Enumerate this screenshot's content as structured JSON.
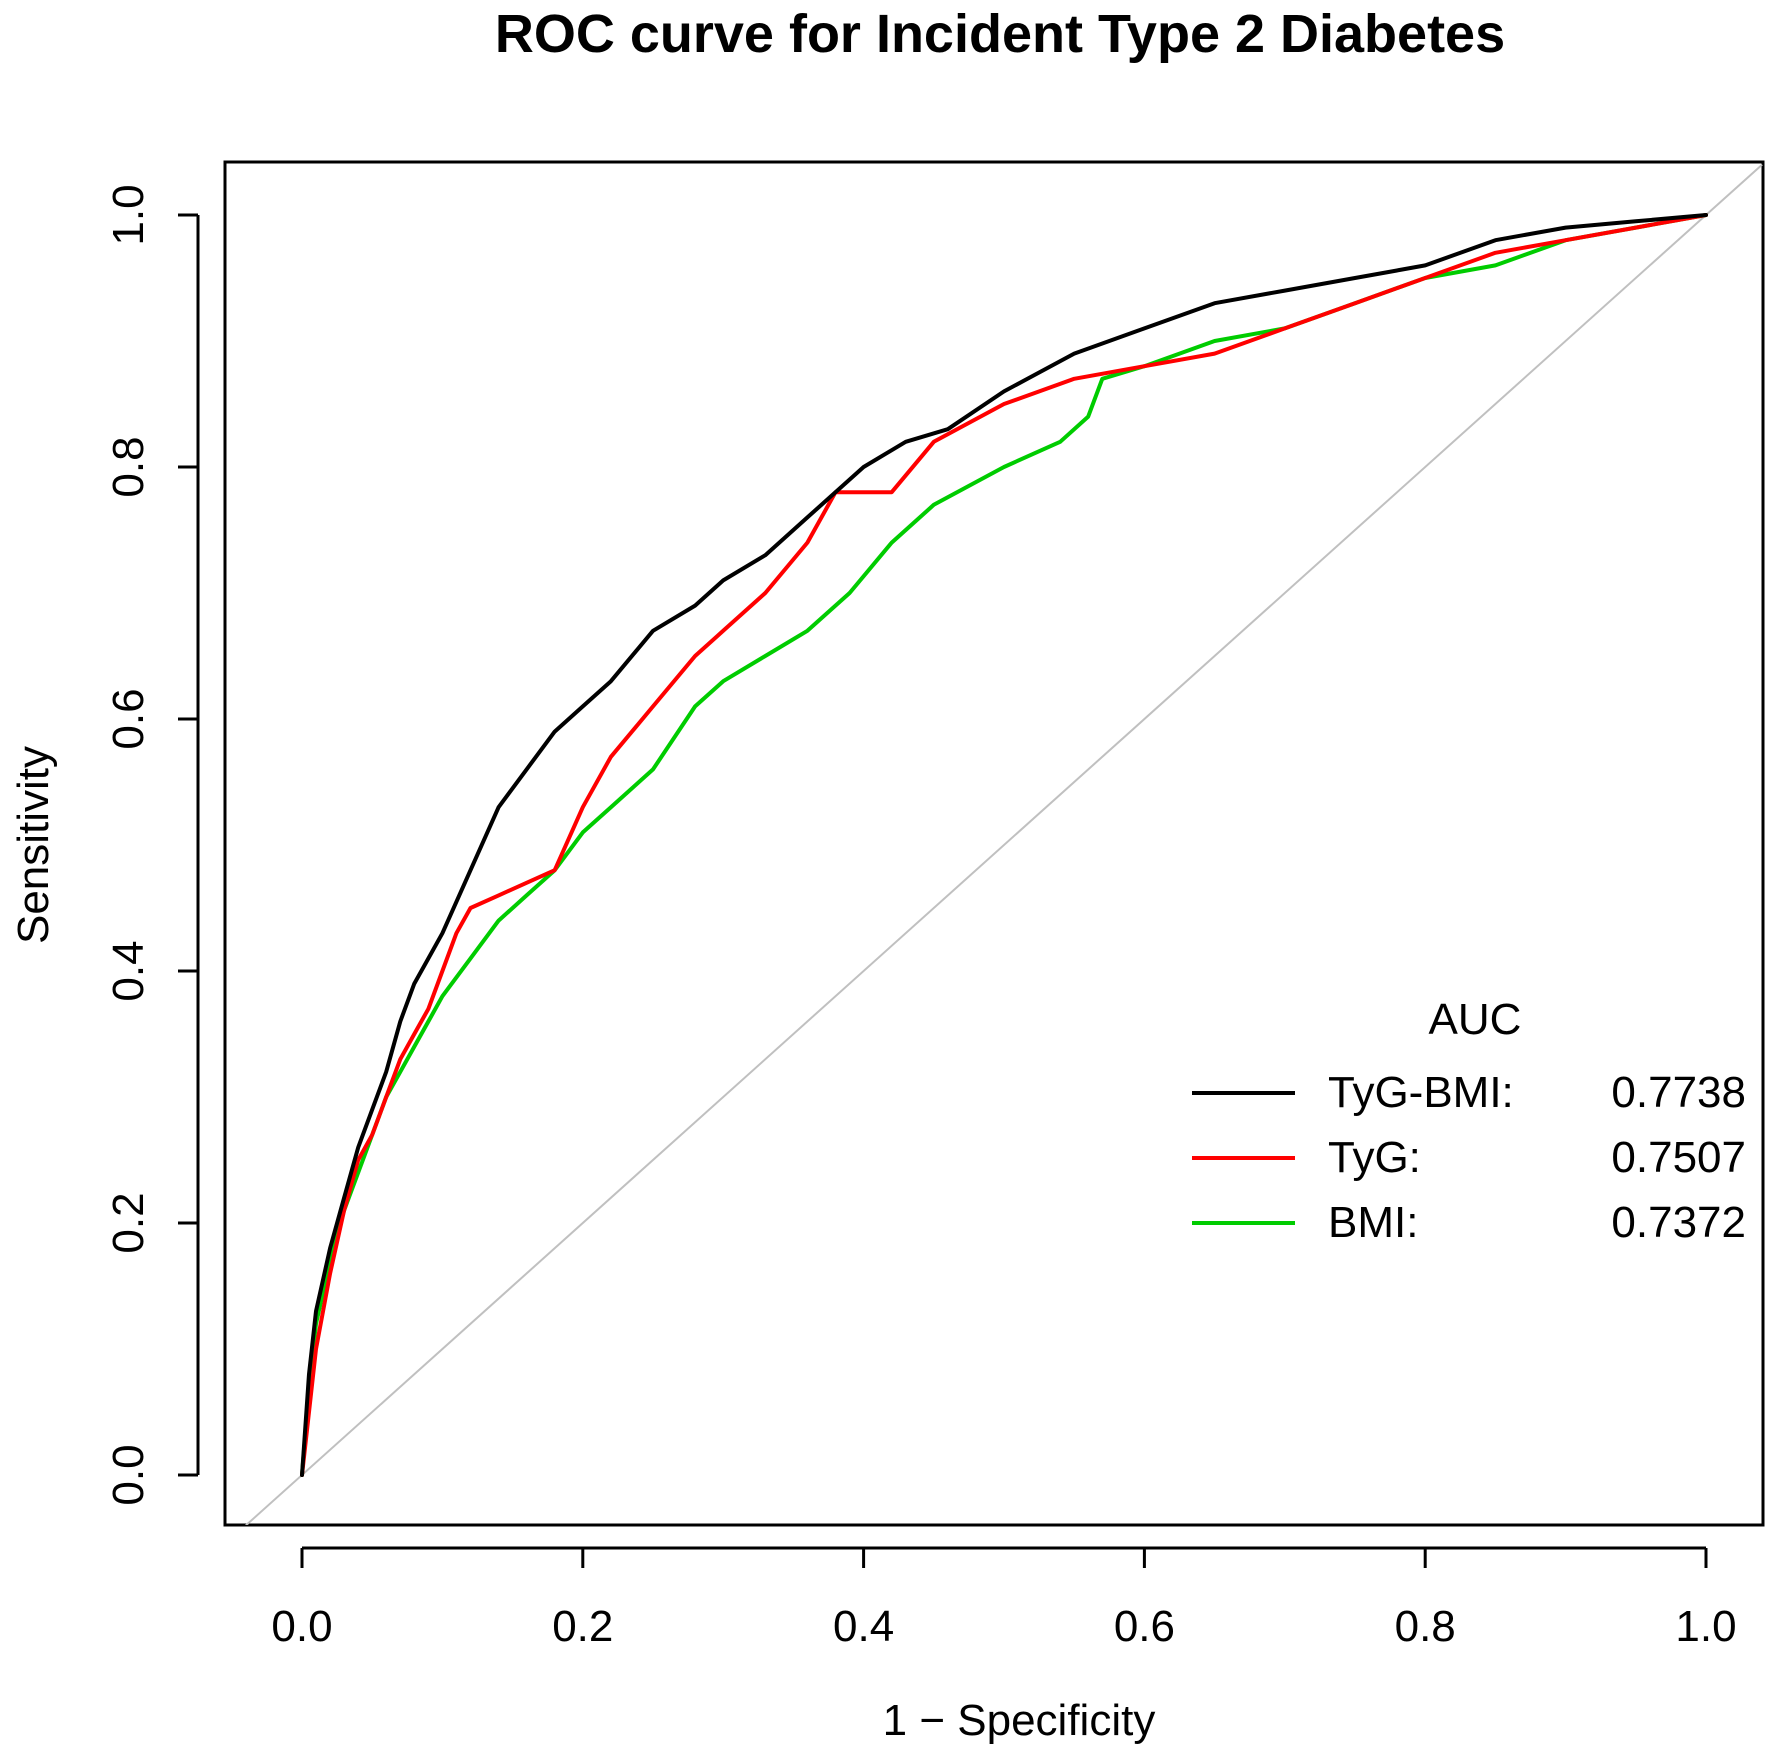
{
  "chart_data": {
    "type": "line",
    "title": "ROC curve for Incident Type 2 Diabetes",
    "xlabel": "1 − Specificity",
    "ylabel": "Sensitivity",
    "xlim": [
      0.0,
      1.0
    ],
    "ylim": [
      0.0,
      1.0
    ],
    "x_ticks": [
      "0.0",
      "0.2",
      "0.4",
      "0.6",
      "0.8",
      "1.0"
    ],
    "y_ticks": [
      "0.0",
      "0.2",
      "0.4",
      "0.6",
      "0.8",
      "1.0"
    ],
    "grid": false,
    "legend": {
      "title": "AUC",
      "position": "bottom-right",
      "entries": [
        {
          "name": "TyG-BMI:",
          "value": "0.7738",
          "color": "#000000"
        },
        {
          "name": "TyG:",
          "value": "0.7507",
          "color": "#ff0000"
        },
        {
          "name": "BMI:",
          "value": "0.7372",
          "color": "#00cc00"
        }
      ]
    },
    "reference_line": {
      "x": [
        -0.04,
        1.04
      ],
      "y": [
        -0.04,
        1.04
      ],
      "color": "#c0c0c0"
    },
    "series": [
      {
        "name": "TyG-BMI",
        "color": "#000000",
        "x": [
          0.0,
          0.005,
          0.01,
          0.02,
          0.03,
          0.04,
          0.05,
          0.06,
          0.07,
          0.08,
          0.09,
          0.1,
          0.12,
          0.14,
          0.16,
          0.18,
          0.2,
          0.22,
          0.25,
          0.28,
          0.3,
          0.33,
          0.36,
          0.4,
          0.43,
          0.46,
          0.5,
          0.55,
          0.6,
          0.65,
          0.7,
          0.75,
          0.8,
          0.85,
          0.9,
          0.95,
          1.0
        ],
        "y": [
          0.0,
          0.08,
          0.13,
          0.18,
          0.22,
          0.26,
          0.29,
          0.32,
          0.36,
          0.39,
          0.41,
          0.43,
          0.48,
          0.53,
          0.56,
          0.59,
          0.61,
          0.63,
          0.67,
          0.69,
          0.71,
          0.73,
          0.76,
          0.8,
          0.82,
          0.83,
          0.86,
          0.89,
          0.91,
          0.93,
          0.94,
          0.95,
          0.96,
          0.98,
          0.99,
          0.995,
          1.0
        ]
      },
      {
        "name": "TyG",
        "color": "#ff0000",
        "x": [
          0.0,
          0.005,
          0.01,
          0.02,
          0.03,
          0.04,
          0.05,
          0.06,
          0.07,
          0.08,
          0.09,
          0.1,
          0.11,
          0.12,
          0.14,
          0.16,
          0.18,
          0.2,
          0.22,
          0.25,
          0.28,
          0.3,
          0.33,
          0.36,
          0.38,
          0.4,
          0.42,
          0.45,
          0.5,
          0.55,
          0.6,
          0.65,
          0.7,
          0.75,
          0.8,
          0.85,
          0.9,
          0.95,
          1.0
        ],
        "y": [
          0.0,
          0.05,
          0.1,
          0.16,
          0.21,
          0.25,
          0.27,
          0.3,
          0.33,
          0.35,
          0.37,
          0.4,
          0.43,
          0.45,
          0.46,
          0.47,
          0.48,
          0.53,
          0.57,
          0.61,
          0.65,
          0.67,
          0.7,
          0.74,
          0.78,
          0.78,
          0.78,
          0.82,
          0.85,
          0.87,
          0.88,
          0.89,
          0.91,
          0.93,
          0.95,
          0.97,
          0.98,
          0.99,
          1.0
        ]
      },
      {
        "name": "BMI",
        "color": "#00cc00",
        "x": [
          0.0,
          0.005,
          0.01,
          0.02,
          0.03,
          0.04,
          0.05,
          0.06,
          0.07,
          0.08,
          0.09,
          0.1,
          0.12,
          0.14,
          0.16,
          0.18,
          0.2,
          0.22,
          0.25,
          0.28,
          0.3,
          0.33,
          0.36,
          0.39,
          0.42,
          0.45,
          0.5,
          0.54,
          0.56,
          0.57,
          0.6,
          0.65,
          0.7,
          0.75,
          0.8,
          0.85,
          0.9,
          0.95,
          1.0
        ],
        "y": [
          0.0,
          0.07,
          0.12,
          0.17,
          0.21,
          0.24,
          0.27,
          0.3,
          0.32,
          0.34,
          0.36,
          0.38,
          0.41,
          0.44,
          0.46,
          0.48,
          0.51,
          0.53,
          0.56,
          0.61,
          0.63,
          0.65,
          0.67,
          0.7,
          0.74,
          0.77,
          0.8,
          0.82,
          0.84,
          0.87,
          0.88,
          0.9,
          0.91,
          0.93,
          0.95,
          0.96,
          0.98,
          0.99,
          1.0
        ]
      }
    ]
  }
}
